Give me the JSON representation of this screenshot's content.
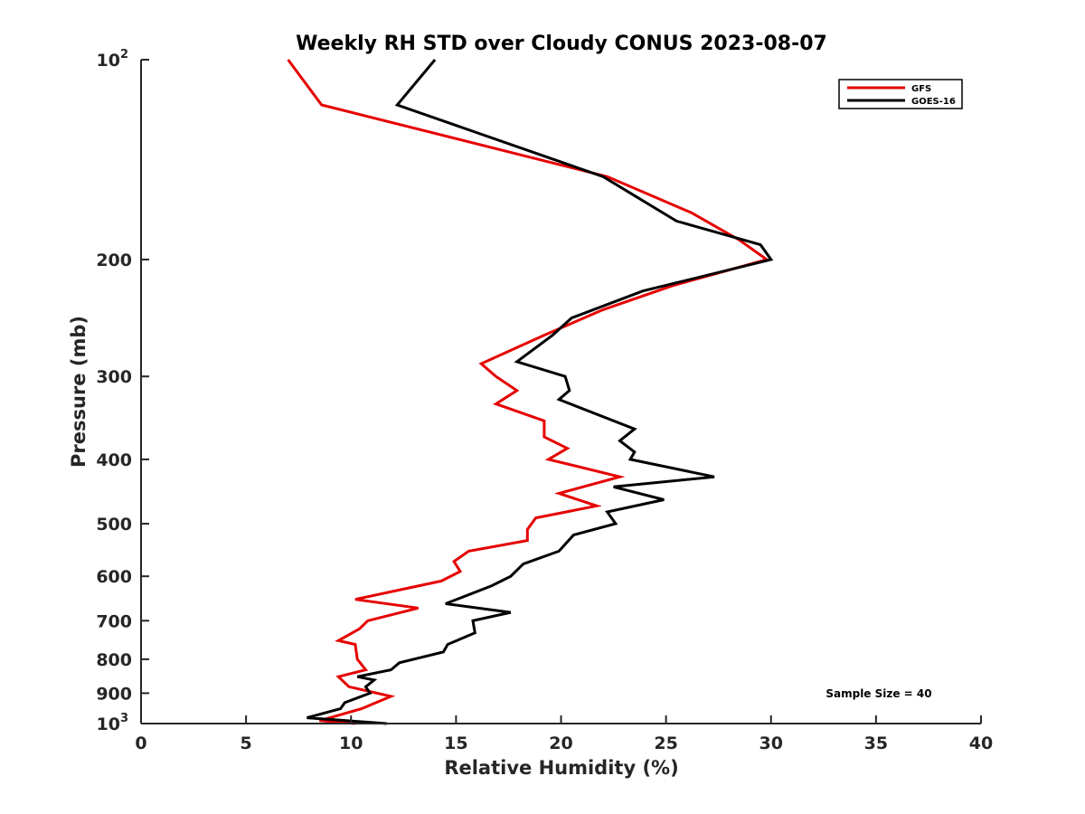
{
  "chart_data": {
    "type": "line",
    "title": "Weekly RH STD over Cloudy CONUS 2023-08-07",
    "xlabel": "Relative Humidity (%)",
    "ylabel": "Pressure (mb)",
    "xlim": [
      0,
      40
    ],
    "ylim": [
      100,
      1000
    ],
    "y_scale": "log",
    "y_reversed": true,
    "grid": false,
    "legend_position": "top-right",
    "x_ticks": [
      0,
      5,
      10,
      15,
      20,
      25,
      30,
      35,
      40
    ],
    "x_tick_labels": [
      "0",
      "5",
      "10",
      "15",
      "20",
      "25",
      "30",
      "35",
      "40"
    ],
    "y_ticks": [
      100,
      200,
      300,
      400,
      500,
      600,
      700,
      800,
      900,
      1000
    ],
    "y_tick_labels": [
      {
        "base": "10",
        "exp": "2"
      },
      {
        "base": "200",
        "exp": ""
      },
      {
        "base": "300",
        "exp": ""
      },
      {
        "base": "400",
        "exp": ""
      },
      {
        "base": "500",
        "exp": ""
      },
      {
        "base": "600",
        "exp": ""
      },
      {
        "base": "700",
        "exp": ""
      },
      {
        "base": "800",
        "exp": ""
      },
      {
        "base": "900",
        "exp": ""
      },
      {
        "base": "10",
        "exp": "3"
      }
    ],
    "annotation": "Sample Size = 40",
    "series": [
      {
        "name": "GFS",
        "color": "#e60000",
        "points": [
          [
            7.0,
            100
          ],
          [
            8.6,
            117
          ],
          [
            22.2,
            150
          ],
          [
            26.2,
            170
          ],
          [
            28.5,
            187
          ],
          [
            29.8,
            200
          ],
          [
            25.3,
            219
          ],
          [
            22.0,
            238
          ],
          [
            19.2,
            260
          ],
          [
            16.2,
            287
          ],
          [
            16.9,
            300
          ],
          [
            17.9,
            315
          ],
          [
            16.9,
            330
          ],
          [
            19.2,
            350
          ],
          [
            19.2,
            370
          ],
          [
            20.3,
            385
          ],
          [
            19.4,
            400
          ],
          [
            22.8,
            425
          ],
          [
            19.9,
            450
          ],
          [
            21.7,
            470
          ],
          [
            18.8,
            490
          ],
          [
            18.4,
            510
          ],
          [
            18.4,
            530
          ],
          [
            15.6,
            550
          ],
          [
            14.9,
            570
          ],
          [
            15.2,
            590
          ],
          [
            14.3,
            610
          ],
          [
            10.2,
            650
          ],
          [
            13.2,
            670
          ],
          [
            10.8,
            700
          ],
          [
            10.4,
            720
          ],
          [
            9.4,
            750
          ],
          [
            10.2,
            760
          ],
          [
            10.3,
            800
          ],
          [
            10.7,
            830
          ],
          [
            9.4,
            850
          ],
          [
            9.9,
            880
          ],
          [
            11.9,
            910
          ],
          [
            10.5,
            950
          ],
          [
            8.5,
            990
          ],
          [
            10.2,
            1000
          ]
        ]
      },
      {
        "name": "GOES-16",
        "color": "#000000",
        "points": [
          [
            14.0,
            100
          ],
          [
            12.2,
            117
          ],
          [
            22.0,
            150
          ],
          [
            25.5,
            175
          ],
          [
            29.5,
            190
          ],
          [
            30.0,
            200
          ],
          [
            23.9,
            223
          ],
          [
            20.5,
            245
          ],
          [
            19.6,
            260
          ],
          [
            17.9,
            285
          ],
          [
            20.2,
            300
          ],
          [
            20.4,
            315
          ],
          [
            19.9,
            325
          ],
          [
            23.5,
            360
          ],
          [
            22.8,
            375
          ],
          [
            23.5,
            390
          ],
          [
            23.3,
            400
          ],
          [
            27.3,
            425
          ],
          [
            22.5,
            440
          ],
          [
            24.9,
            460
          ],
          [
            22.2,
            480
          ],
          [
            22.6,
            500
          ],
          [
            20.6,
            520
          ],
          [
            19.9,
            550
          ],
          [
            18.2,
            575
          ],
          [
            17.6,
            600
          ],
          [
            16.7,
            620
          ],
          [
            14.5,
            660
          ],
          [
            17.6,
            680
          ],
          [
            15.8,
            700
          ],
          [
            15.9,
            730
          ],
          [
            14.6,
            760
          ],
          [
            14.4,
            780
          ],
          [
            12.3,
            810
          ],
          [
            11.9,
            830
          ],
          [
            10.3,
            850
          ],
          [
            11.1,
            860
          ],
          [
            10.7,
            880
          ],
          [
            10.9,
            900
          ],
          [
            9.7,
            930
          ],
          [
            9.5,
            950
          ],
          [
            7.9,
            980
          ],
          [
            11.7,
            1000
          ]
        ]
      }
    ]
  }
}
